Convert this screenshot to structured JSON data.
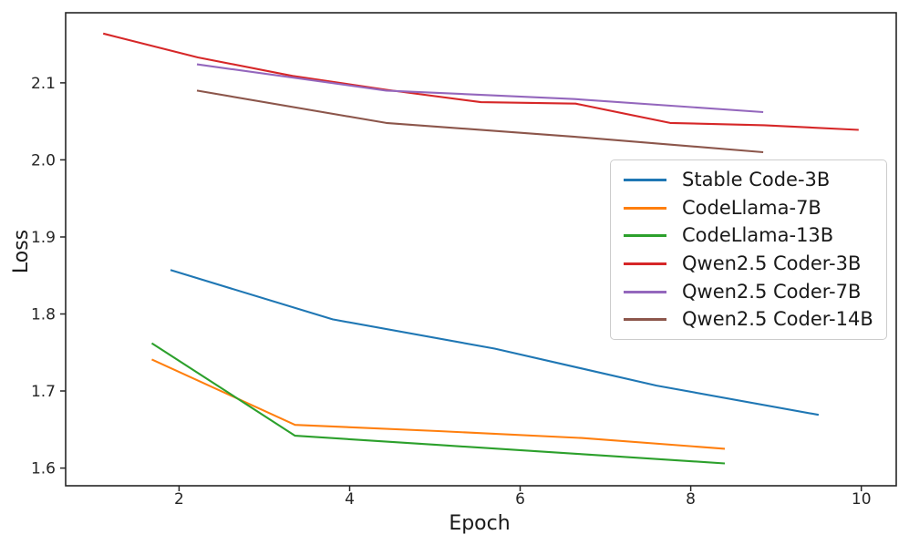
{
  "figure": {
    "background_color": "#ffffff",
    "axis_color": "#262626",
    "legend_border_color": "#cccccc"
  },
  "chart_data": {
    "type": "line",
    "title": "",
    "xlabel": "Epoch",
    "ylabel": "Loss",
    "xlim": [
      0.67,
      10.41
    ],
    "ylim": [
      1.577,
      2.191
    ],
    "xticks": [
      2,
      4,
      6,
      8,
      10
    ],
    "yticks": [
      1.6,
      1.7,
      1.8,
      1.9,
      2.0,
      2.1
    ],
    "grid": false,
    "legend_position": "inside-right",
    "series": [
      {
        "name": "Stable Code-3B",
        "color": "#1f77b4",
        "x": [
          1.9,
          3.8,
          5.7,
          7.6,
          9.5
        ],
        "y": [
          1.857,
          1.793,
          1.755,
          1.707,
          1.669
        ]
      },
      {
        "name": "CodeLlama-7B",
        "color": "#ff7f0e",
        "x": [
          1.68,
          3.36,
          5.04,
          6.72,
          8.4
        ],
        "y": [
          1.741,
          1.656,
          1.648,
          1.639,
          1.625
        ]
      },
      {
        "name": "CodeLlama-13B",
        "color": "#2ca02c",
        "x": [
          1.68,
          3.36,
          5.04,
          6.72,
          8.4
        ],
        "y": [
          1.762,
          1.642,
          1.63,
          1.618,
          1.606
        ]
      },
      {
        "name": "Qwen2.5 Coder-3B",
        "color": "#d62728",
        "x": [
          1.11,
          2.22,
          3.33,
          4.43,
          5.54,
          6.65,
          7.76,
          8.86,
          9.97
        ],
        "y": [
          2.164,
          2.133,
          2.109,
          2.091,
          2.075,
          2.073,
          2.048,
          2.045,
          2.039
        ]
      },
      {
        "name": "Qwen2.5 Coder-7B",
        "color": "#9467bd",
        "x": [
          2.21,
          4.43,
          6.64,
          8.85
        ],
        "y": [
          2.124,
          2.09,
          2.079,
          2.062
        ]
      },
      {
        "name": "Qwen2.5 Coder-14B",
        "color": "#8c564b",
        "x": [
          2.21,
          4.43,
          6.64,
          8.85
        ],
        "y": [
          2.09,
          2.048,
          2.03,
          2.01
        ]
      }
    ]
  }
}
